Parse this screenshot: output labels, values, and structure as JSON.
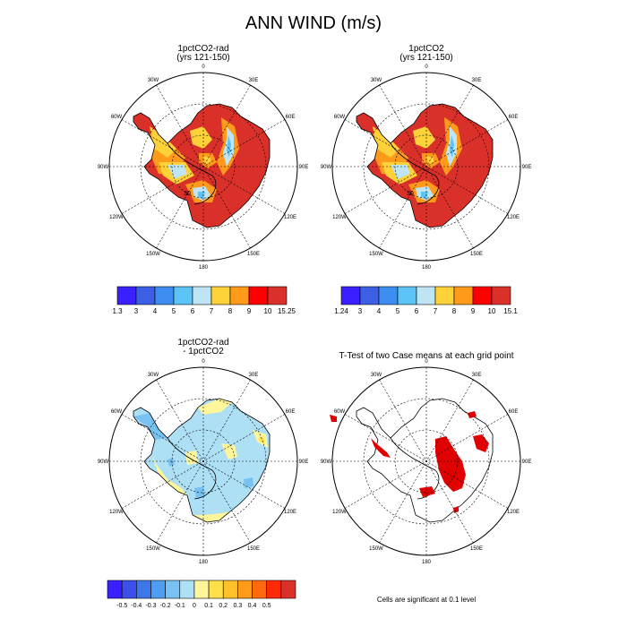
{
  "page": {
    "title": "ANN WIND (m/s)"
  },
  "panels": [
    {
      "title_line1": "1pctCO2-rad",
      "title_line2": "(yrs 121-150)"
    },
    {
      "title_line1": "1pctCO2",
      "title_line2": "(yrs 121-150)"
    },
    {
      "title_line1": "1pctCO2-rad",
      "title_line2": "- 1pctCO2"
    },
    {
      "title_line1": "T-Test of two Case means at each grid point",
      "title_line2": ""
    }
  ],
  "longitude_labels": [
    "0",
    "30E",
    "60E",
    "90E",
    "120E",
    "150E",
    "180",
    "150W",
    "120W",
    "90W",
    "60W",
    "30W"
  ],
  "contour_labels": {
    "panel1": "30",
    "panel2": "30"
  },
  "colorbars": {
    "panel1": {
      "colors": [
        "#3a1fff",
        "#3c5fe6",
        "#3d8ef0",
        "#5bc3f5",
        "#bfe5f5",
        "#ffd23a",
        "#ff9a1a",
        "#ff0000",
        "#d9302a"
      ],
      "labels": [
        "1.3",
        "3",
        "4",
        "5",
        "6",
        "7",
        "8",
        "9",
        "10",
        "15.25"
      ]
    },
    "panel2": {
      "colors": [
        "#3a1fff",
        "#3c5fe6",
        "#3d8ef0",
        "#5bc3f5",
        "#bfe5f5",
        "#ffd23a",
        "#ff9a1a",
        "#ff0000",
        "#d9302a"
      ],
      "labels": [
        "1.24",
        "3",
        "4",
        "5",
        "6",
        "7",
        "8",
        "9",
        "10",
        "15.1"
      ]
    },
    "panel3": {
      "colors": [
        "#3a1fff",
        "#3c4fe8",
        "#3d78ea",
        "#4d9ef2",
        "#77c2f2",
        "#aee0f5",
        "#fff59a",
        "#ffe04a",
        "#ffc02a",
        "#ff9a1a",
        "#ff6a10",
        "#ff2a0a",
        "#d9302a"
      ],
      "labels": [
        "-0.5",
        "-0.4",
        "-0.3",
        "-0.2",
        "-0.1",
        "0",
        "0.1",
        "0.2",
        "0.3",
        "0.4",
        "0.5"
      ]
    }
  },
  "footnote": "Cells are significant at 0.1 level",
  "colors": {
    "high_speed": "#d9302a",
    "orange": "#ff9a1a",
    "yellow": "#ffd23a",
    "light_blue": "#bfe5f5",
    "mid_blue": "#5bc3f5",
    "diff_blue": "#aee0f5",
    "diff_yellow": "#fff59a",
    "significant": "#e00000"
  }
}
